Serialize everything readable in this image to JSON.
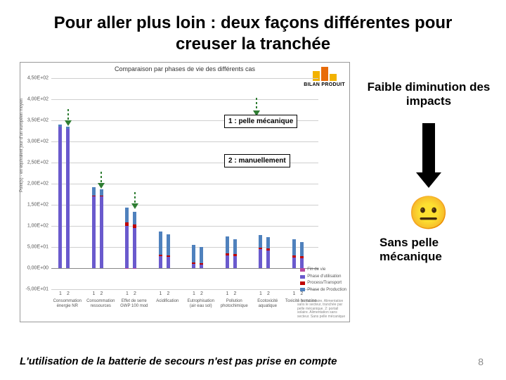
{
  "title": "Pour aller plus loin  : deux façons différentes pour creuser la tranchée",
  "footer": "L'utilisation de la batterie de secours n'est pas prise en compte",
  "pageNumber": "8",
  "right": {
    "faible": "Faible diminution des impacts",
    "face": "😐",
    "sansPelle": "Sans pelle mécanique"
  },
  "annotations": {
    "a1": "1 : pelle mécanique",
    "a2": "2 : manuellement"
  },
  "chart": {
    "title": "Comparaison par phases de vie des différents cas",
    "yAxisTitle": "Point(s) - en equivalent jour d'un européen moyen",
    "yMin": -0.5,
    "yMax": 4.5,
    "yTicks": [
      {
        "v": -0.5,
        "l": "-5,00E+01"
      },
      {
        "v": 0.0,
        "l": "0,00E+00"
      },
      {
        "v": 0.5,
        "l": "5,00E+01"
      },
      {
        "v": 1.0,
        "l": "1,00E+02"
      },
      {
        "v": 1.5,
        "l": "1,50E+02"
      },
      {
        "v": 2.0,
        "l": "2,00E+02"
      },
      {
        "v": 2.5,
        "l": "2,50E+02"
      },
      {
        "v": 3.0,
        "l": "3,00E+02"
      },
      {
        "v": 3.5,
        "l": "3,50E+02"
      },
      {
        "v": 4.0,
        "l": "4,00E+02"
      },
      {
        "v": 4.5,
        "l": "4,50E+02"
      }
    ],
    "barWidth": 5,
    "colors": {
      "finDeVie": "#b94a9c",
      "utilisation": "#6a5acd",
      "processTransport": "#c00000",
      "production": "#4f81bd",
      "grid": "#cfcfcf",
      "baseline": "#888888",
      "arrowGreen": "#2e7d32",
      "arrowBlack": "#000000",
      "bilanYellow": "#f2b200",
      "bilanOrange": "#e86c0a"
    },
    "categories": [
      {
        "name": "Consommation énergie NR",
        "pairs": [
          [
            0,
            3.35,
            0,
            0.05
          ],
          [
            0,
            3.3,
            0,
            0.05
          ]
        ]
      },
      {
        "name": "Consommation ressources",
        "pairs": [
          [
            0,
            1.7,
            0.02,
            0.2
          ],
          [
            0,
            1.7,
            0.02,
            0.15
          ]
        ]
      },
      {
        "name": "Effet de serre GWP 100 mod",
        "pairs": [
          [
            -0.02,
            1.0,
            0.08,
            0.35
          ],
          [
            -0.02,
            0.95,
            0.08,
            0.3
          ]
        ]
      },
      {
        "name": "Acidification",
        "pairs": [
          [
            0,
            0.28,
            0.04,
            0.55
          ],
          [
            0,
            0.26,
            0.04,
            0.5
          ]
        ]
      },
      {
        "name": "Eutrophisation (air eau sol)",
        "pairs": [
          [
            0,
            0.1,
            0.03,
            0.42
          ],
          [
            0,
            0.09,
            0.03,
            0.38
          ]
        ]
      },
      {
        "name": "Pollution photochimique",
        "pairs": [
          [
            0,
            0.3,
            0.05,
            0.4
          ],
          [
            0,
            0.28,
            0.05,
            0.36
          ]
        ]
      },
      {
        "name": "Ecotoxicité aquatique",
        "pairs": [
          [
            0,
            0.45,
            0.04,
            0.3
          ],
          [
            0,
            0.42,
            0.04,
            0.27
          ]
        ]
      },
      {
        "name": "Toxicité humaine",
        "pairs": [
          [
            0,
            0.25,
            0.05,
            0.38
          ],
          [
            0,
            0.23,
            0.05,
            0.34
          ]
        ]
      }
    ],
    "phaseLabels": [
      "Fin de vie",
      "Phase d'utilisation",
      "Process/Transport",
      "Phase de Production"
    ],
    "footnote": "1: portail solaire. Alimentation sans le secteur, tranchée par pelle mécanique. 2: portail solaire. Alimentation sans secteur. Sans pelle mécanique"
  },
  "style": {
    "titleFontSize": 24,
    "rightFontSize": 17,
    "footerFontSize": 15
  }
}
